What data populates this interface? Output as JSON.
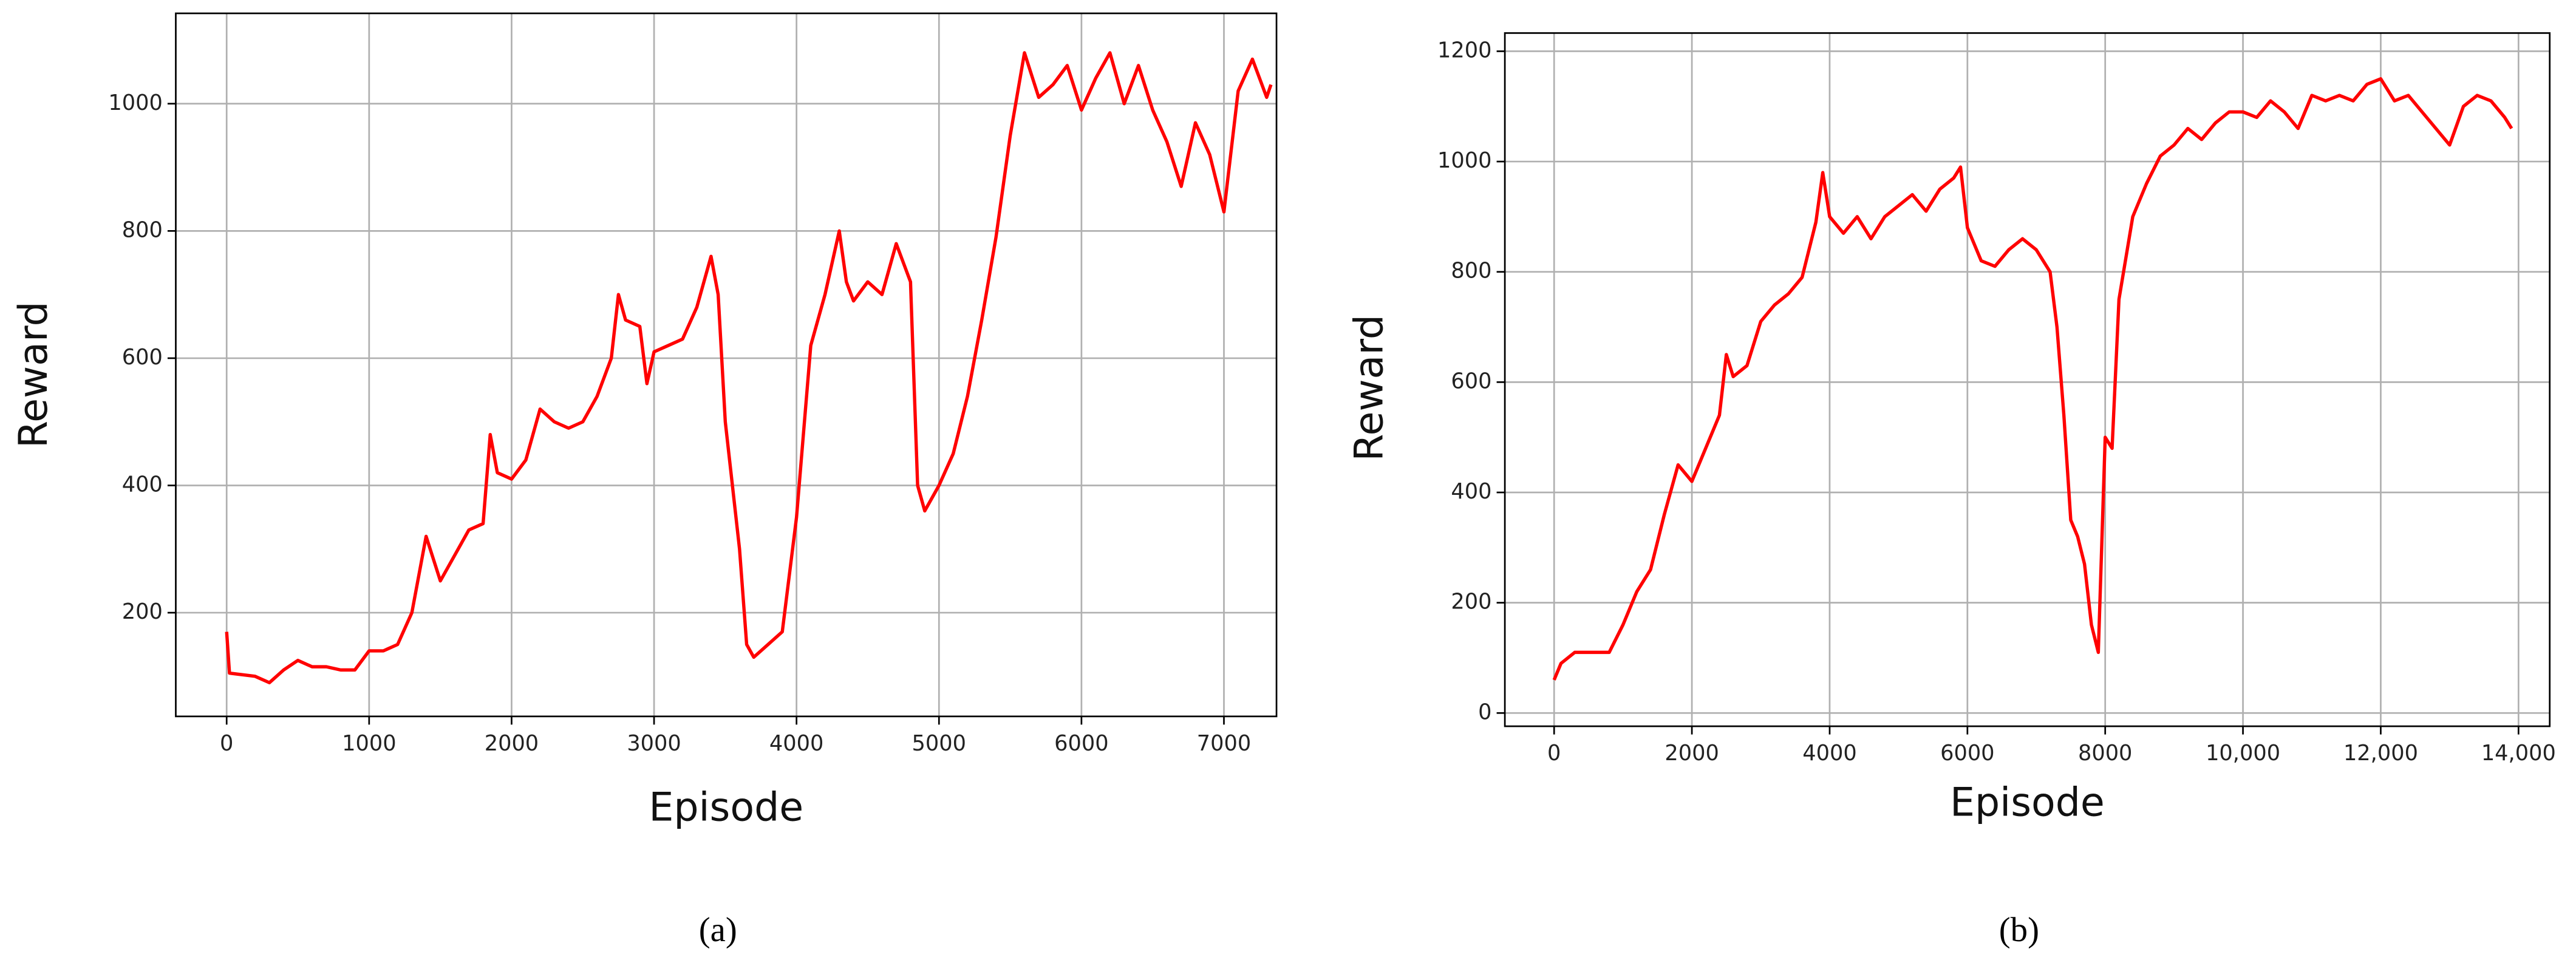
{
  "chart_data": [
    {
      "type": "line",
      "label": "(a)",
      "xlabel": "Episode",
      "ylabel": "Reward",
      "grid": true,
      "xlim": [
        -357,
        7369
      ],
      "ylim": [
        37,
        1142
      ],
      "xticks": [
        0,
        1000,
        2000,
        3000,
        4000,
        5000,
        6000,
        7000
      ],
      "yticks": [
        200,
        400,
        600,
        800,
        1000
      ],
      "series": [
        {
          "color": "#ff0000",
          "x": [
            0,
            20,
            200,
            300,
            400,
            500,
            600,
            700,
            800,
            900,
            1000,
            1100,
            1200,
            1300,
            1400,
            1500,
            1600,
            1700,
            1800,
            1850,
            1900,
            2000,
            2100,
            2200,
            2300,
            2400,
            2500,
            2600,
            2700,
            2750,
            2800,
            2900,
            2950,
            3000,
            3100,
            3200,
            3300,
            3400,
            3450,
            3500,
            3600,
            3650,
            3700,
            3800,
            3900,
            4000,
            4100,
            4200,
            4300,
            4350,
            4400,
            4500,
            4600,
            4700,
            4800,
            4850,
            4900,
            5000,
            5100,
            5200,
            5300,
            5400,
            5500,
            5600,
            5700,
            5800,
            5900,
            6000,
            6100,
            6200,
            6300,
            6400,
            6500,
            6600,
            6700,
            6800,
            6900,
            7000,
            7100,
            7200,
            7300,
            7330
          ],
          "values": [
            170,
            105,
            100,
            90,
            110,
            125,
            115,
            115,
            110,
            110,
            140,
            140,
            150,
            200,
            320,
            250,
            290,
            330,
            340,
            480,
            420,
            410,
            440,
            520,
            500,
            490,
            500,
            540,
            600,
            700,
            660,
            650,
            560,
            610,
            620,
            630,
            680,
            760,
            700,
            500,
            300,
            150,
            130,
            150,
            170,
            350,
            620,
            700,
            800,
            720,
            690,
            720,
            700,
            780,
            720,
            400,
            360,
            400,
            450,
            540,
            660,
            790,
            950,
            1080,
            1010,
            1030,
            1060,
            990,
            1040,
            1080,
            1000,
            1060,
            990,
            940,
            870,
            970,
            920,
            830,
            1020,
            1070,
            1010,
            1030
          ]
        }
      ]
    },
    {
      "type": "line",
      "label": "(b)",
      "xlabel": "Episode",
      "ylabel": "Reward",
      "grid": true,
      "xlim": [
        -715,
        14453
      ],
      "ylim": [
        -24,
        1233
      ],
      "xticks": [
        0,
        2000,
        4000,
        6000,
        8000,
        {
          "value": 10000,
          "label": "10,000"
        },
        {
          "value": 12000,
          "label": "12,000"
        },
        {
          "value": 14000,
          "label": "14,000"
        }
      ],
      "yticks": [
        0,
        200,
        400,
        600,
        800,
        1000,
        1200
      ],
      "series": [
        {
          "color": "#ff0000",
          "x": [
            0,
            100,
            300,
            500,
            700,
            800,
            1000,
            1200,
            1400,
            1600,
            1800,
            2000,
            2200,
            2400,
            2500,
            2600,
            2800,
            3000,
            3200,
            3400,
            3600,
            3800,
            3900,
            4000,
            4200,
            4400,
            4600,
            4800,
            5000,
            5200,
            5400,
            5600,
            5800,
            5900,
            6000,
            6200,
            6400,
            6600,
            6800,
            7000,
            7200,
            7300,
            7400,
            7500,
            7600,
            7700,
            7800,
            7900,
            8000,
            8100,
            8200,
            8400,
            8600,
            8800,
            9000,
            9200,
            9400,
            9600,
            9800,
            10000,
            10200,
            10400,
            10600,
            10800,
            11000,
            11200,
            11400,
            11600,
            11800,
            12000,
            12200,
            12400,
            12600,
            12800,
            13000,
            13200,
            13400,
            13600,
            13800,
            13900
          ],
          "values": [
            60,
            90,
            110,
            110,
            110,
            110,
            160,
            220,
            260,
            360,
            450,
            420,
            480,
            540,
            650,
            610,
            630,
            710,
            740,
            760,
            790,
            890,
            980,
            900,
            870,
            900,
            860,
            900,
            920,
            940,
            910,
            950,
            970,
            990,
            880,
            820,
            810,
            840,
            860,
            840,
            800,
            700,
            540,
            350,
            320,
            270,
            160,
            110,
            500,
            480,
            750,
            900,
            960,
            1010,
            1030,
            1060,
            1040,
            1070,
            1090,
            1090,
            1080,
            1110,
            1090,
            1060,
            1120,
            1110,
            1120,
            1110,
            1140,
            1150,
            1110,
            1120,
            1090,
            1060,
            1030,
            1100,
            1120,
            1110,
            1080,
            1060
          ]
        }
      ]
    }
  ]
}
